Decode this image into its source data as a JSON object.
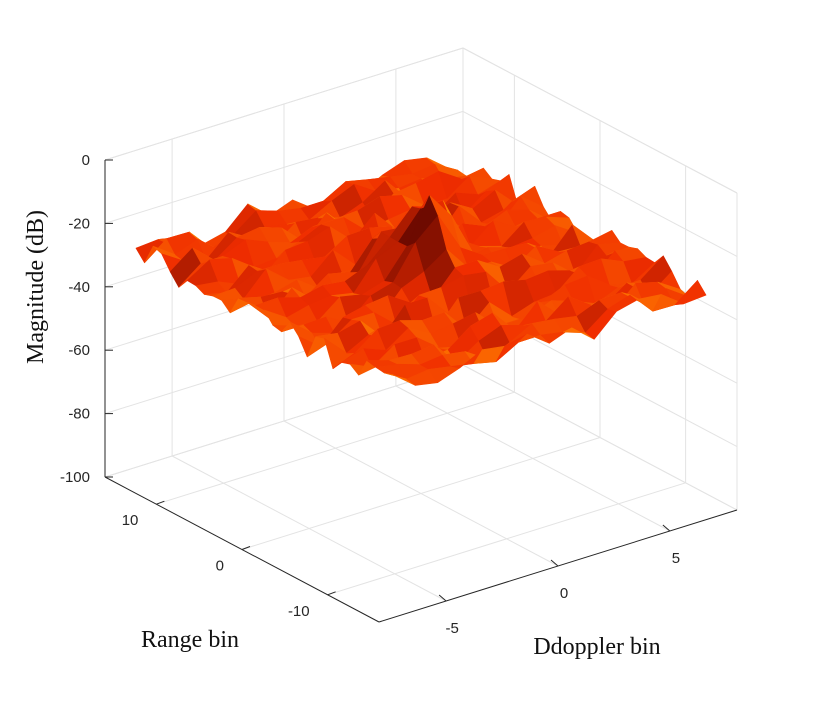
{
  "chart_data": {
    "type": "surface",
    "title": "",
    "xlabel": "Ddoppler bin",
    "ylabel": "Range bin",
    "zlabel": "Magnitude (dB)",
    "xlim": [
      -8,
      8
    ],
    "ylim": [
      -16,
      16
    ],
    "zlim": [
      -100,
      0
    ],
    "xticks": [
      -5,
      0,
      5
    ],
    "yticks": [
      -10,
      0,
      10
    ],
    "zticks": [
      -100,
      -80,
      -60,
      -40,
      -20,
      0
    ],
    "grid": true,
    "colormap": "hot",
    "surface": {
      "doppler_bins": [
        -7,
        7
      ],
      "range_bins": [
        -15,
        15
      ],
      "peak": {
        "doppler": 0,
        "range": 0,
        "magnitude_db": -5
      },
      "floor_level_db": -30,
      "floor_fluctuation_db": 5,
      "description_values": "noise floor around -25 to -35 dB with single peak near 0 dB at origin"
    }
  }
}
